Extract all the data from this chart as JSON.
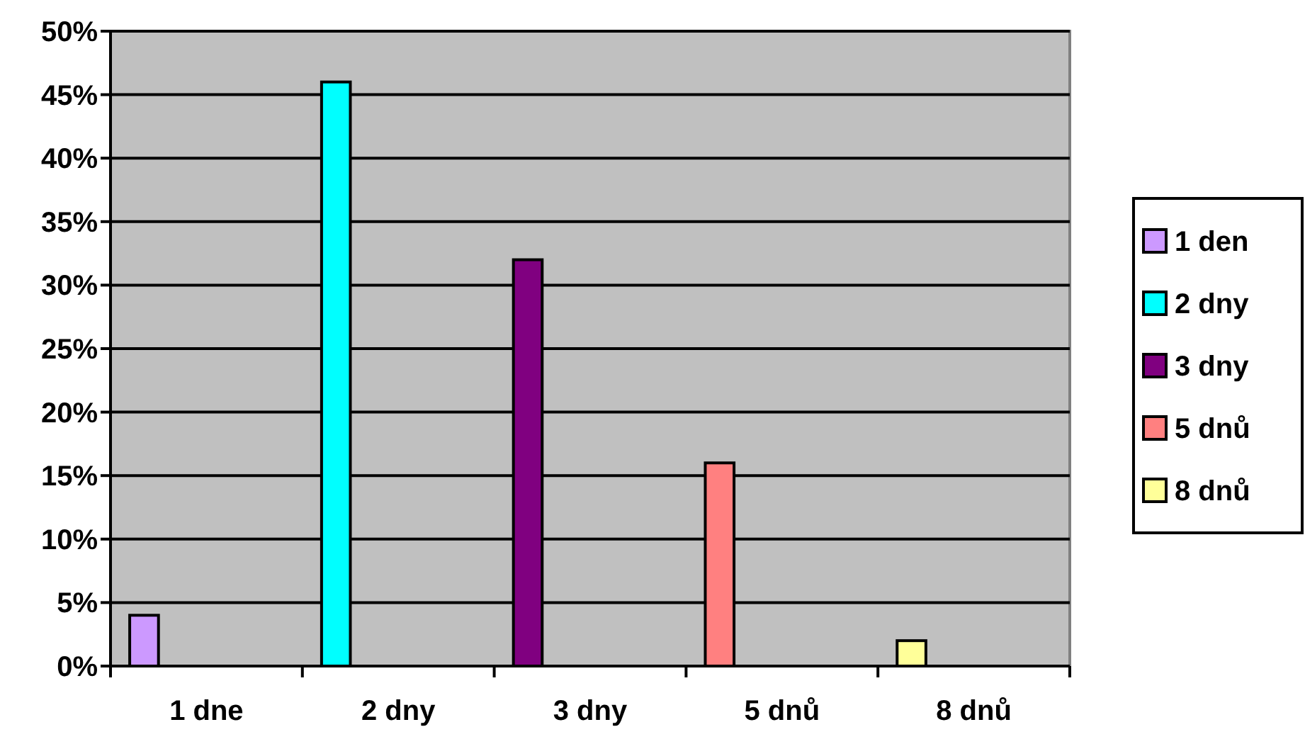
{
  "chart_data": {
    "type": "bar",
    "categories": [
      "1 dne",
      "2 dny",
      "3 dny",
      "5 dnů",
      "8 dnů"
    ],
    "series": [
      {
        "name": "1 den",
        "color": "#cc99ff",
        "values": [
          4,
          null,
          null,
          null,
          null
        ]
      },
      {
        "name": "2 dny",
        "color": "#00ffff",
        "values": [
          null,
          46,
          null,
          null,
          null
        ]
      },
      {
        "name": "3 dny",
        "color": "#800080",
        "values": [
          null,
          null,
          32,
          null,
          null
        ]
      },
      {
        "name": "5 dnů",
        "color": "#ff8080",
        "values": [
          null,
          null,
          null,
          16,
          null
        ]
      },
      {
        "name": "8 dnů",
        "color": "#ffff99",
        "values": [
          null,
          null,
          null,
          null,
          2
        ]
      }
    ],
    "ylim": [
      0,
      50
    ],
    "yticks": [
      {
        "value": 0,
        "label": "0%"
      },
      {
        "value": 5,
        "label": "5%"
      },
      {
        "value": 10,
        "label": "10%"
      },
      {
        "value": 15,
        "label": "15%"
      },
      {
        "value": 20,
        "label": "20%"
      },
      {
        "value": 25,
        "label": "25%"
      },
      {
        "value": 30,
        "label": "30%"
      },
      {
        "value": 35,
        "label": "35%"
      },
      {
        "value": 40,
        "label": "40%"
      },
      {
        "value": 45,
        "label": "45%"
      },
      {
        "value": 50,
        "label": "50%"
      }
    ],
    "grid": "y",
    "legend": "right"
  }
}
